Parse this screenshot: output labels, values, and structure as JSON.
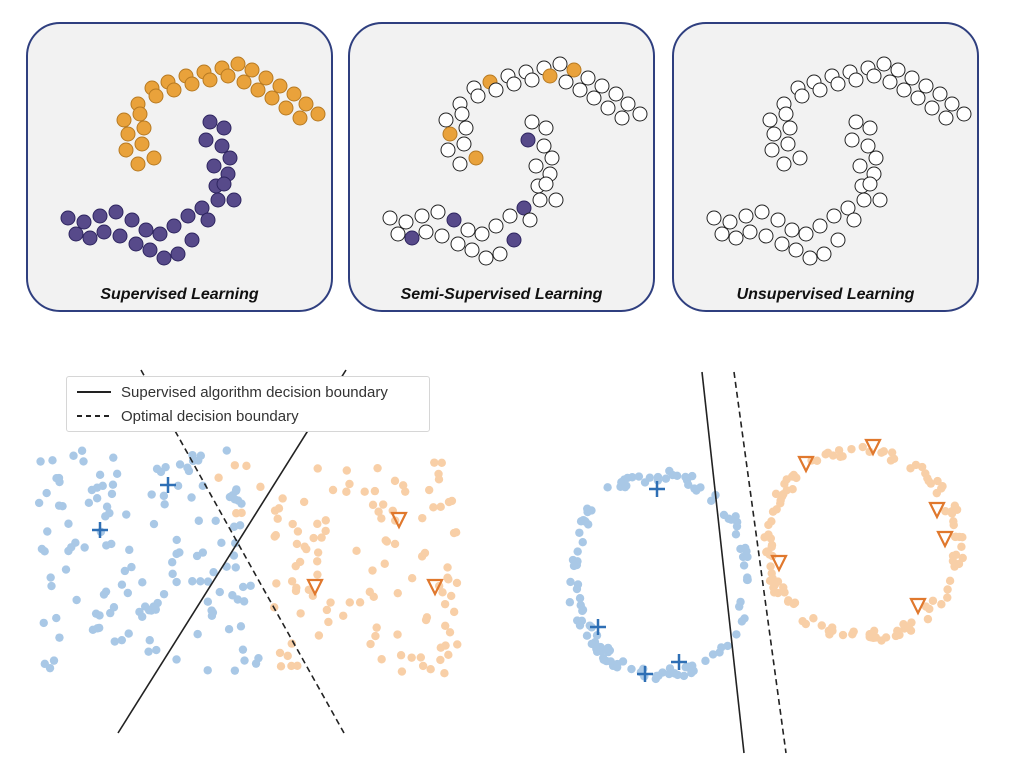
{
  "panels": [
    {
      "label": "Supervised Learning"
    },
    {
      "label": "Semi-Supervised Learning"
    },
    {
      "label": "Unsupervised Learning"
    }
  ],
  "legend": {
    "solid_label": "Supervised algorithm decision boundary",
    "dashed_label": "Optimal decision boundary"
  },
  "colors": {
    "orange": "#e9a23b",
    "purple": "#574a8a",
    "light_blue": "#a9c8e6",
    "light_orange": "#f8cfa7",
    "marker_blue": "#2e6fb5",
    "marker_orange": "#e0782d",
    "panel_border": "#2f3f7f"
  },
  "icons": {
    "labeled_blue": "plus-marker",
    "labeled_orange": "triangle-down-marker"
  }
}
